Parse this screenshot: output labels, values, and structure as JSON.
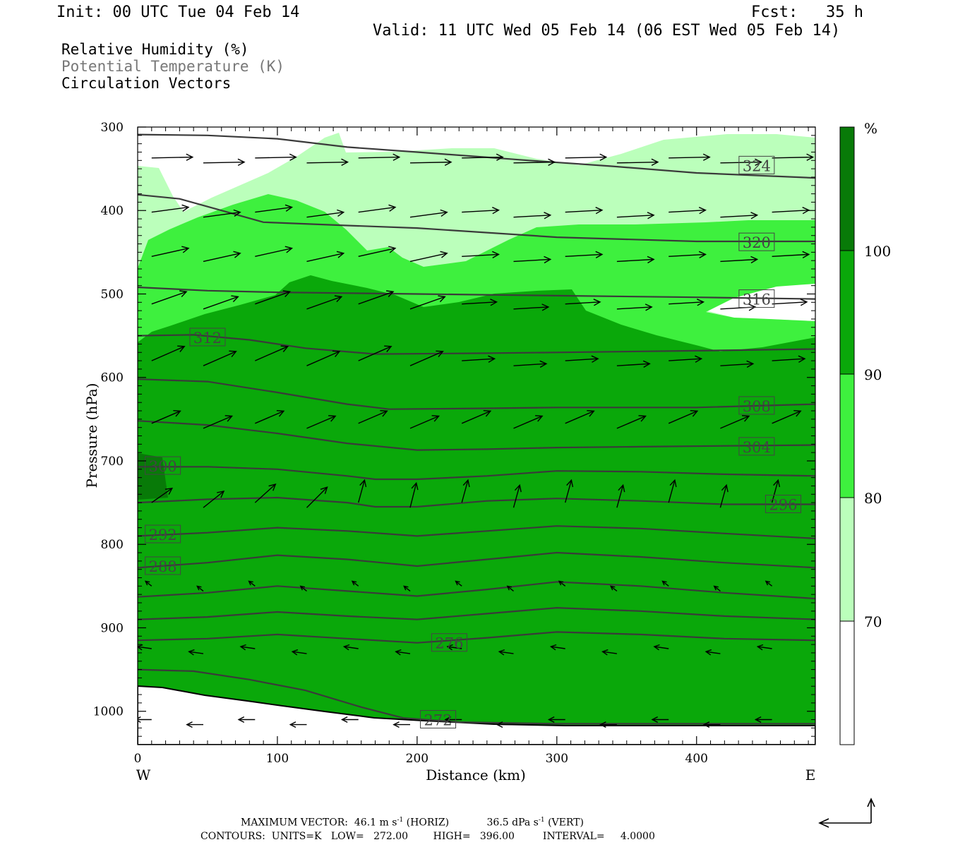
{
  "header": {
    "init": "Init: 00 UTC Tue 04 Feb 14",
    "fcst": "Fcst:   35 h",
    "valid": "Valid: 11 UTC Wed 05 Feb 14 (06 EST Wed 05 Feb 14)"
  },
  "fields": {
    "rh": "Relative Humidity (%)",
    "theta": "Potential Temperature (K)",
    "vectors": "Circulation Vectors"
  },
  "chart_data": {
    "type": "cross-section",
    "xlabel": "Distance (km)",
    "ylabel": "Pressure (hPa)",
    "xlim": [
      0,
      485
    ],
    "ylim": [
      1040,
      300
    ],
    "x_ticks": [
      0,
      100,
      200,
      300,
      400
    ],
    "y_ticks": [
      300,
      400,
      500,
      600,
      700,
      800,
      900,
      1000
    ],
    "left_end": "W",
    "right_end": "E",
    "colorbar": {
      "unit": "%",
      "levels": [
        70,
        80,
        90,
        100
      ],
      "colors": [
        "#ffffff",
        "#bbffbb",
        "#3ef03e",
        "#0aa80a",
        "#087a08"
      ]
    },
    "theta_contours": [
      {
        "value": 272,
        "label": "272",
        "label_at": [
          215,
          1010
        ],
        "points": [
          [
            0,
            950
          ],
          [
            40,
            952
          ],
          [
            80,
            962
          ],
          [
            120,
            975
          ],
          [
            160,
            995
          ],
          [
            190,
            1008
          ],
          [
            230,
            1013
          ],
          [
            300,
            1015
          ],
          [
            400,
            1015
          ],
          [
            485,
            1015
          ]
        ]
      },
      {
        "value": 276,
        "label": "276",
        "label_at": [
          223,
          918
        ],
        "points": [
          [
            0,
            915
          ],
          [
            50,
            913
          ],
          [
            100,
            908
          ],
          [
            150,
            913
          ],
          [
            200,
            918
          ],
          [
            250,
            912
          ],
          [
            300,
            905
          ],
          [
            360,
            908
          ],
          [
            420,
            913
          ],
          [
            485,
            915
          ]
        ]
      },
      {
        "value": 280,
        "label": "",
        "points": [
          [
            0,
            890
          ],
          [
            50,
            887
          ],
          [
            100,
            881
          ],
          [
            150,
            886
          ],
          [
            200,
            890
          ],
          [
            250,
            883
          ],
          [
            300,
            876
          ],
          [
            360,
            880
          ],
          [
            420,
            886
          ],
          [
            485,
            890
          ]
        ]
      },
      {
        "value": 284,
        "label": "",
        "points": [
          [
            0,
            863
          ],
          [
            50,
            858
          ],
          [
            100,
            850
          ],
          [
            150,
            856
          ],
          [
            200,
            862
          ],
          [
            250,
            854
          ],
          [
            300,
            845
          ],
          [
            360,
            850
          ],
          [
            420,
            858
          ],
          [
            485,
            865
          ]
        ]
      },
      {
        "value": 288,
        "label": "288",
        "label_at": [
          18,
          826
        ],
        "points": [
          [
            0,
            828
          ],
          [
            50,
            822
          ],
          [
            100,
            813
          ],
          [
            150,
            818
          ],
          [
            200,
            826
          ],
          [
            250,
            818
          ],
          [
            300,
            810
          ],
          [
            360,
            815
          ],
          [
            420,
            822
          ],
          [
            485,
            828
          ]
        ]
      },
      {
        "value": 292,
        "label": "292",
        "label_at": [
          18,
          788
        ],
        "points": [
          [
            0,
            790
          ],
          [
            50,
            786
          ],
          [
            100,
            780
          ],
          [
            150,
            784
          ],
          [
            200,
            790
          ],
          [
            250,
            784
          ],
          [
            300,
            778
          ],
          [
            360,
            781
          ],
          [
            420,
            787
          ],
          [
            485,
            793
          ]
        ]
      },
      {
        "value": 296,
        "label": "296",
        "label_at": [
          462,
          752
        ],
        "points": [
          [
            0,
            750
          ],
          [
            50,
            746
          ],
          [
            100,
            744
          ],
          [
            150,
            750
          ],
          [
            170,
            755
          ],
          [
            200,
            755
          ],
          [
            250,
            748
          ],
          [
            300,
            745
          ],
          [
            360,
            748
          ],
          [
            420,
            752
          ],
          [
            485,
            752
          ]
        ]
      },
      {
        "value": 300,
        "label": "300",
        "label_at": [
          18,
          706
        ],
        "points": [
          [
            0,
            707
          ],
          [
            50,
            707
          ],
          [
            100,
            710
          ],
          [
            150,
            718
          ],
          [
            170,
            722
          ],
          [
            200,
            722
          ],
          [
            250,
            718
          ],
          [
            300,
            712
          ],
          [
            360,
            713
          ],
          [
            420,
            716
          ],
          [
            485,
            718
          ]
        ]
      },
      {
        "value": 304,
        "label": "304",
        "label_at": [
          443,
          683
        ],
        "points": [
          [
            0,
            652
          ],
          [
            50,
            657
          ],
          [
            100,
            667
          ],
          [
            150,
            679
          ],
          [
            200,
            687
          ],
          [
            250,
            686
          ],
          [
            300,
            684
          ],
          [
            360,
            683
          ],
          [
            420,
            682
          ],
          [
            485,
            681
          ]
        ]
      },
      {
        "value": 308,
        "label": "308",
        "label_at": [
          443,
          634
        ],
        "points": [
          [
            0,
            602
          ],
          [
            50,
            605
          ],
          [
            100,
            618
          ],
          [
            150,
            632
          ],
          [
            180,
            638
          ],
          [
            250,
            637
          ],
          [
            300,
            636
          ],
          [
            400,
            636
          ],
          [
            485,
            632
          ]
        ]
      },
      {
        "value": 312,
        "label": "312",
        "label_at": [
          50,
          552
        ],
        "points": [
          [
            0,
            550
          ],
          [
            40,
            549
          ],
          [
            80,
            555
          ],
          [
            120,
            565
          ],
          [
            170,
            572
          ],
          [
            250,
            571
          ],
          [
            300,
            570
          ],
          [
            400,
            568
          ],
          [
            485,
            566
          ]
        ]
      },
      {
        "value": 316,
        "label": "316",
        "label_at": [
          443,
          506
        ],
        "points": [
          [
            0,
            492
          ],
          [
            50,
            496
          ],
          [
            100,
            498
          ],
          [
            200,
            500
          ],
          [
            300,
            502
          ],
          [
            400,
            504
          ],
          [
            485,
            506
          ]
        ]
      },
      {
        "value": 320,
        "label": "320",
        "label_at": [
          443,
          438
        ],
        "points": [
          [
            0,
            381
          ],
          [
            30,
            386
          ],
          [
            60,
            400
          ],
          [
            90,
            414
          ],
          [
            150,
            418
          ],
          [
            200,
            421
          ],
          [
            300,
            432
          ],
          [
            400,
            437
          ],
          [
            485,
            437
          ]
        ]
      },
      {
        "value": 324,
        "label": "324",
        "label_at": [
          443,
          346
        ],
        "points": [
          [
            0,
            309
          ],
          [
            50,
            310
          ],
          [
            100,
            314
          ],
          [
            150,
            324
          ],
          [
            200,
            330
          ],
          [
            280,
            340
          ],
          [
            340,
            347
          ],
          [
            400,
            355
          ],
          [
            485,
            361
          ]
        ]
      }
    ],
    "vector_max": {
      "horiz": "46.1",
      "vert": "36.5"
    },
    "contour_info": {
      "units": "K",
      "low": "272.00",
      "high": "396.00",
      "interval": "4.0000"
    }
  },
  "footer": {
    "maxvec_label": "MAXIMUM VECTOR:",
    "horiz_val": "46.1",
    "horiz_unit": "m s",
    "horiz_tag": "(HORIZ)",
    "vert_val": "36.5",
    "vert_unit": "dPa s",
    "vert_tag": "(VERT)",
    "exp": "-1",
    "contours_line": "CONTOURS:  UNITS=K   LOW=   272.00        HIGH=   396.00         INTERVAL=     4.0000"
  }
}
